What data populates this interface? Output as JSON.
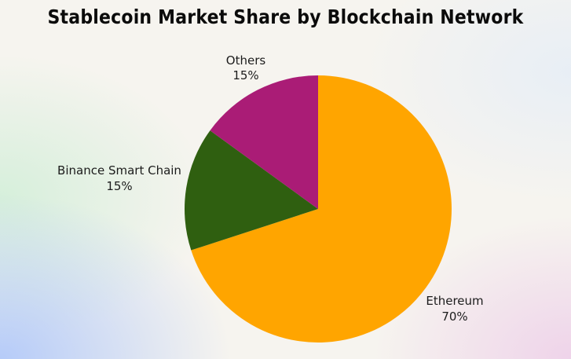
{
  "chart_data": {
    "type": "pie",
    "title": "Stablecoin Market Share by Blockchain Network",
    "slices": [
      {
        "label": "Ethereum",
        "value": 70,
        "display": "70%",
        "color": "#FFA500"
      },
      {
        "label": "Binance Smart Chain",
        "value": 15,
        "display": "15%",
        "color": "#2F5F10"
      },
      {
        "label": "Others",
        "value": 15,
        "display": "15%",
        "color": "#AA1C76"
      }
    ],
    "start_angle_deg": 0,
    "direction": "clockwise",
    "legend": "none"
  }
}
